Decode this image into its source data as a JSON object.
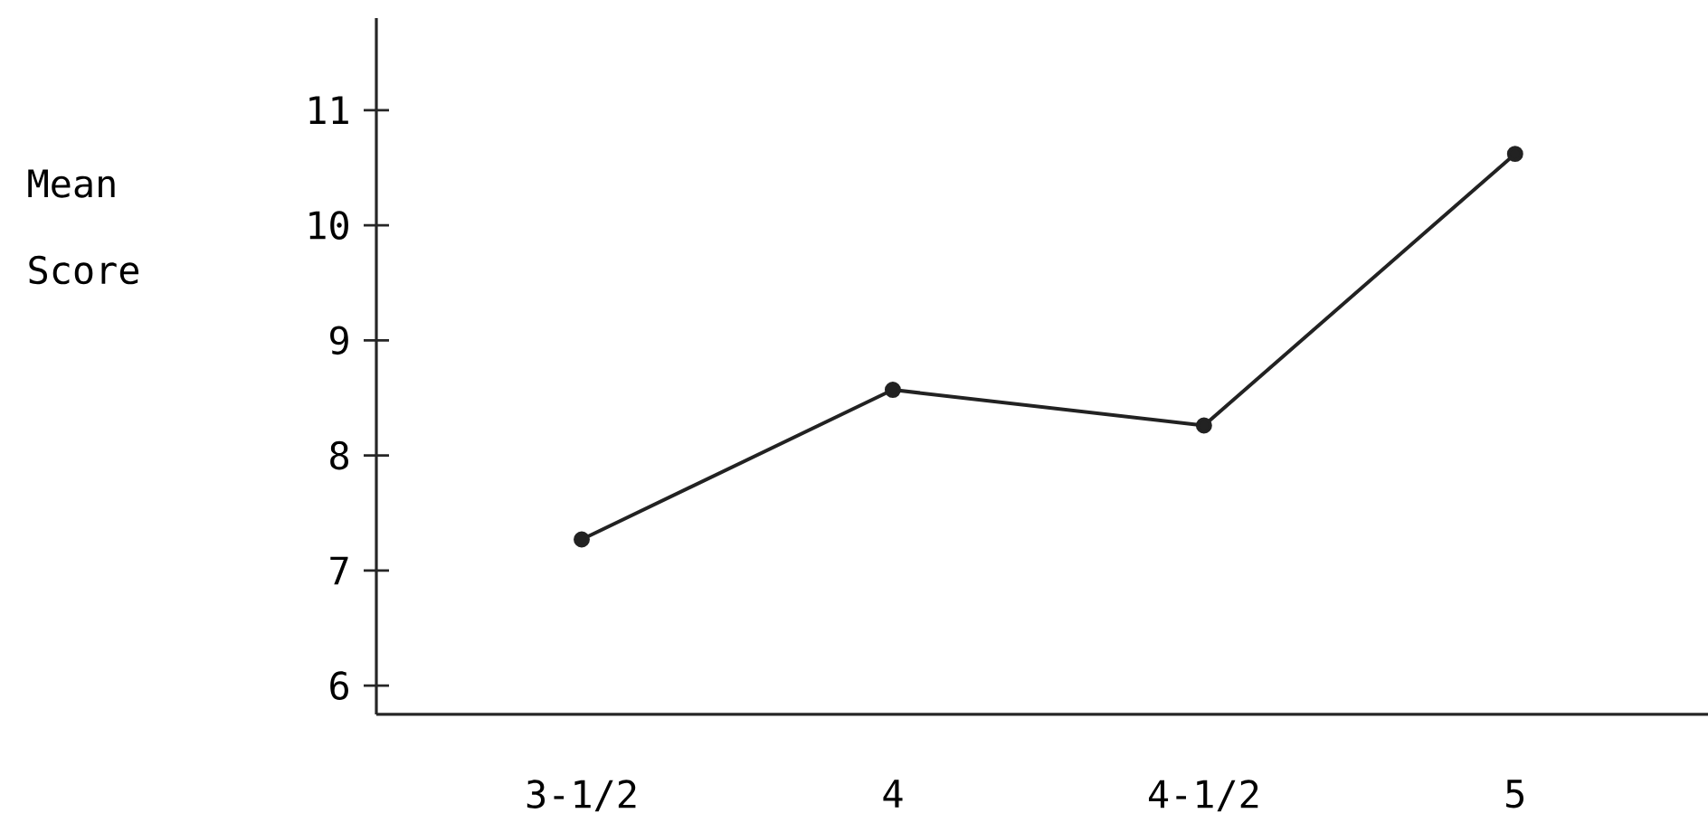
{
  "chart_data": {
    "type": "line",
    "ylabel": "Mean Score",
    "categories": [
      "3-1/2",
      "4",
      "4-1/2",
      "5"
    ],
    "values": [
      7.27,
      8.57,
      8.26,
      10.62
    ],
    "color": "#222222",
    "marker": "circle",
    "line_style": "solid",
    "ylim": [
      5.75,
      11.8
    ],
    "yticks": [
      6,
      7,
      8,
      9,
      10,
      11
    ]
  }
}
